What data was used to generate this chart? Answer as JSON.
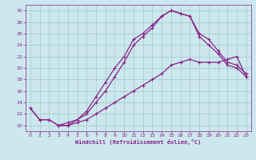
{
  "xlabel": "Windchill (Refroidissement éolien,°C)",
  "bg_color": "#cce8ee",
  "line_color": "#882288",
  "grid_color": "#aacccc",
  "xlim": [
    -0.5,
    23.5
  ],
  "ylim": [
    9,
    31
  ],
  "xticks": [
    0,
    1,
    2,
    3,
    4,
    5,
    6,
    7,
    8,
    9,
    10,
    11,
    12,
    13,
    14,
    15,
    16,
    17,
    18,
    19,
    20,
    21,
    22,
    23
  ],
  "yticks": [
    10,
    12,
    14,
    16,
    18,
    20,
    22,
    24,
    26,
    28,
    30
  ],
  "line1_x": [
    0,
    1,
    2,
    3,
    4,
    5,
    6,
    7,
    8,
    9,
    10,
    11,
    12,
    13,
    14,
    15,
    16,
    17,
    18,
    19,
    20,
    21,
    22,
    23
  ],
  "line1_y": [
    13,
    11,
    11,
    10,
    10,
    10.5,
    11,
    12,
    13,
    14,
    15,
    16,
    17,
    18,
    19,
    20.5,
    21,
    21.5,
    21,
    21,
    21,
    21.5,
    22,
    18.5
  ],
  "line2_x": [
    0,
    1,
    2,
    3,
    4,
    5,
    6,
    7,
    8,
    9,
    10,
    11,
    12,
    13,
    14,
    15,
    16,
    17,
    18,
    19,
    20,
    21,
    22,
    23
  ],
  "line2_y": [
    13,
    11,
    11,
    10,
    10.5,
    11,
    12.5,
    15,
    17.5,
    20,
    22,
    25,
    26,
    27.5,
    29,
    30,
    29.5,
    29,
    26,
    25,
    23,
    21,
    20.5,
    19
  ],
  "line3_x": [
    3,
    4,
    5,
    6,
    7,
    8,
    9,
    10,
    11,
    12,
    13,
    14,
    15,
    16,
    17,
    18,
    19,
    20,
    21,
    22,
    23
  ],
  "line3_y": [
    10,
    10,
    11,
    12,
    14,
    16,
    18.5,
    21,
    24,
    25.5,
    27,
    29,
    30,
    29.5,
    29,
    25.5,
    24,
    22.5,
    20.5,
    20,
    18.5
  ]
}
